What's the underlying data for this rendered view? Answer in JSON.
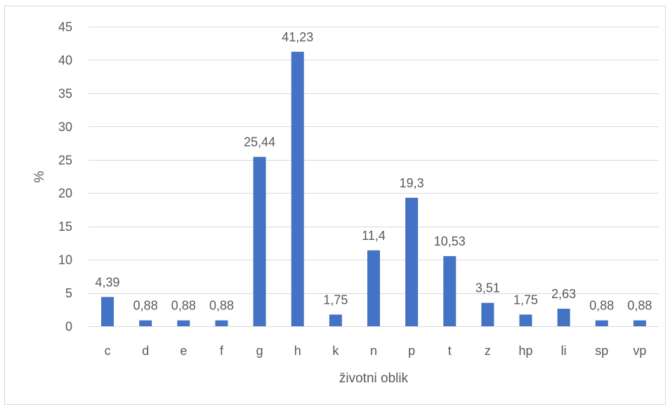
{
  "chart_data": {
    "type": "bar",
    "title": "",
    "xlabel": "životni oblik",
    "ylabel": "%",
    "ylim": [
      0,
      45
    ],
    "yticks": [
      0,
      5,
      10,
      15,
      20,
      25,
      30,
      35,
      40,
      45
    ],
    "grid": true,
    "legend": "none",
    "categories": [
      "c",
      "d",
      "e",
      "f",
      "g",
      "h",
      "k",
      "n",
      "p",
      "t",
      "z",
      "hp",
      "li",
      "sp",
      "vp"
    ],
    "values": [
      4.39,
      0.88,
      0.88,
      0.88,
      25.44,
      41.23,
      1.75,
      11.4,
      19.3,
      10.53,
      3.51,
      1.75,
      2.63,
      0.88,
      0.88
    ],
    "data_labels": [
      "4,39",
      "0,88",
      "0,88",
      "0,88",
      "25,44",
      "41,23",
      "1,75",
      "11,4",
      "19,3",
      "10,53",
      "3,51",
      "1,75",
      "2,63",
      "0,88",
      "0,88"
    ],
    "colors": {
      "bar": "#4472C4",
      "grid": "#D9D9D9",
      "text": "#595959",
      "border": "#D9D9D9"
    }
  }
}
